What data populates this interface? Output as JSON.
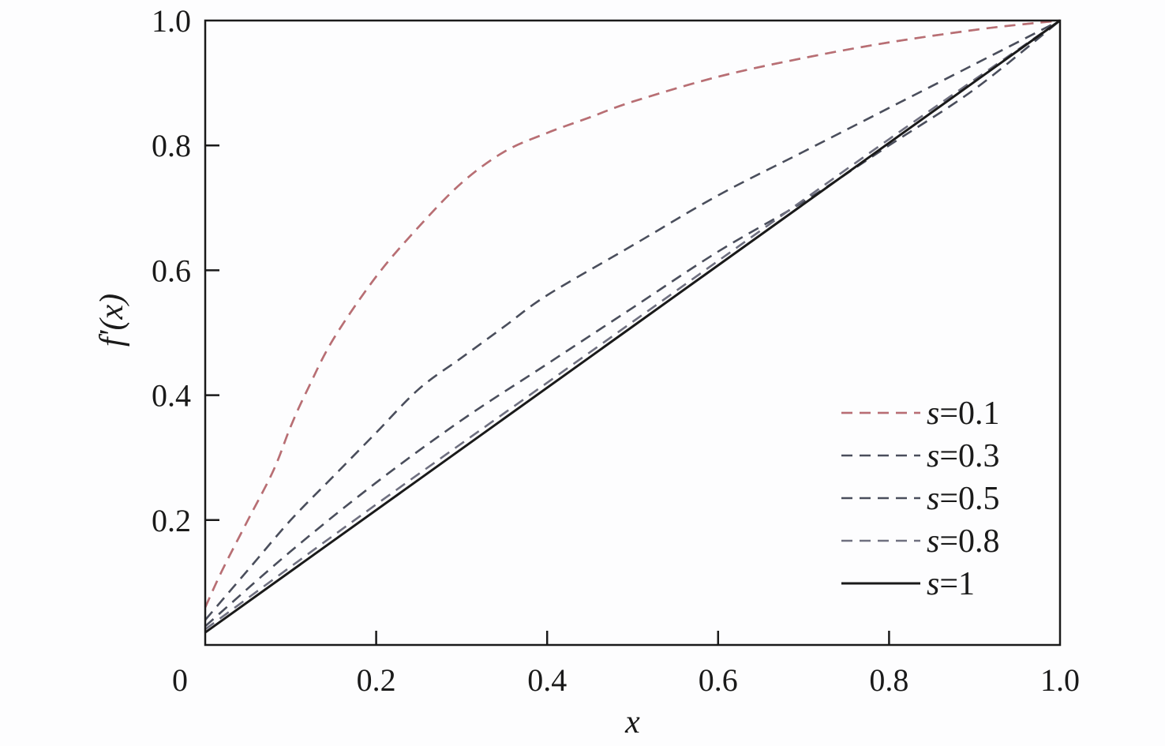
{
  "chart_data": {
    "type": "line",
    "xlabel": "x",
    "ylabel": "f'(x)",
    "xlim": [
      0,
      1.0
    ],
    "ylim": [
      0,
      1.0
    ],
    "grid": false,
    "legend_position": "bottom-right",
    "x_ticks": [
      0,
      0.2,
      0.4,
      0.6,
      0.8,
      1.0
    ],
    "x_tick_labels": [
      "0",
      "0.2",
      "0.4",
      "0.6",
      "0.8",
      "1.0"
    ],
    "y_ticks": [
      0.2,
      0.4,
      0.6,
      0.8,
      1.0
    ],
    "y_tick_labels": [
      "0.2",
      "0.4",
      "0.6",
      "0.8",
      "1.0"
    ],
    "series": [
      {
        "name": "s=0.1",
        "name_var": "s",
        "name_rest": "=0.1",
        "color": "#8a7f92",
        "accent": "#e0605a",
        "dashed": true,
        "x": [
          0,
          0.02,
          0.05,
          0.08,
          0.1,
          0.12,
          0.15,
          0.2,
          0.25,
          0.3,
          0.35,
          0.4,
          0.45,
          0.5,
          0.6,
          0.7,
          0.8,
          0.9,
          0.95,
          1.0
        ],
        "y": [
          0.06,
          0.12,
          0.2,
          0.28,
          0.35,
          0.41,
          0.49,
          0.59,
          0.67,
          0.74,
          0.79,
          0.82,
          0.845,
          0.87,
          0.91,
          0.94,
          0.965,
          0.985,
          0.993,
          1.0
        ]
      },
      {
        "name": "s=0.3",
        "name_var": "s",
        "name_rest": "=0.3",
        "color": "#4a4e5c",
        "dashed": true,
        "x": [
          0,
          0.05,
          0.1,
          0.15,
          0.2,
          0.25,
          0.3,
          0.35,
          0.4,
          0.5,
          0.6,
          0.7,
          0.8,
          0.9,
          1.0
        ],
        "y": [
          0.04,
          0.12,
          0.2,
          0.27,
          0.34,
          0.41,
          0.46,
          0.51,
          0.56,
          0.64,
          0.72,
          0.79,
          0.86,
          0.93,
          1.0
        ]
      },
      {
        "name": "s=0.5",
        "name_var": "s",
        "name_rest": "=0.5",
        "color": "#4a4e5c",
        "dashed": true,
        "x": [
          0,
          0.1,
          0.2,
          0.3,
          0.4,
          0.5,
          0.6,
          0.7,
          0.8,
          0.9,
          1.0
        ],
        "y": [
          0.03,
          0.15,
          0.26,
          0.36,
          0.45,
          0.54,
          0.63,
          0.71,
          0.8,
          0.89,
          1.0
        ]
      },
      {
        "name": "s=0.8",
        "name_var": "s",
        "name_rest": "=0.8",
        "color": "#6f7080",
        "dashed": true,
        "x": [
          0,
          0.2,
          0.4,
          0.6,
          0.8,
          1.0
        ],
        "y": [
          0.025,
          0.225,
          0.42,
          0.615,
          0.81,
          1.0
        ]
      },
      {
        "name": "s=1",
        "name_var": "s",
        "name_rest": "=1",
        "color": "#1a1a1a",
        "dashed": false,
        "x": [
          0,
          1.0
        ],
        "y": [
          0.02,
          1.0
        ]
      }
    ]
  }
}
